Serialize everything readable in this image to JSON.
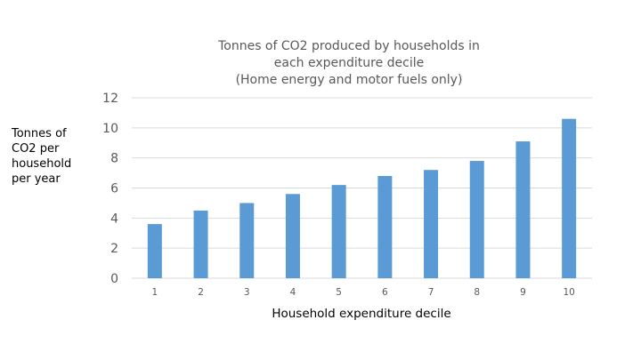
{
  "chart_data": {
    "type": "bar",
    "title_lines": [
      "Tonnes of CO2 produced by households in",
      "each expenditure decile",
      "(Home energy and motor fuels only)"
    ],
    "xlabel": "Household expenditure decile",
    "ylabel": "Tonnes of CO2 per household per year",
    "ylabel_lines": [
      "Tonnes of",
      "CO2 per",
      "household",
      "per year"
    ],
    "categories": [
      "1",
      "2",
      "3",
      "4",
      "5",
      "6",
      "7",
      "8",
      "9",
      "10"
    ],
    "values": [
      3.6,
      4.5,
      5.0,
      5.6,
      6.2,
      6.8,
      7.2,
      7.8,
      9.1,
      10.6
    ],
    "ylim": [
      0,
      12
    ],
    "yticks": [
      "0",
      "2",
      "4",
      "6",
      "8",
      "10",
      "12"
    ],
    "grid": true,
    "legend": "none",
    "bar_color": "#5B9BD5",
    "grid_color": "#D9D9D9"
  }
}
